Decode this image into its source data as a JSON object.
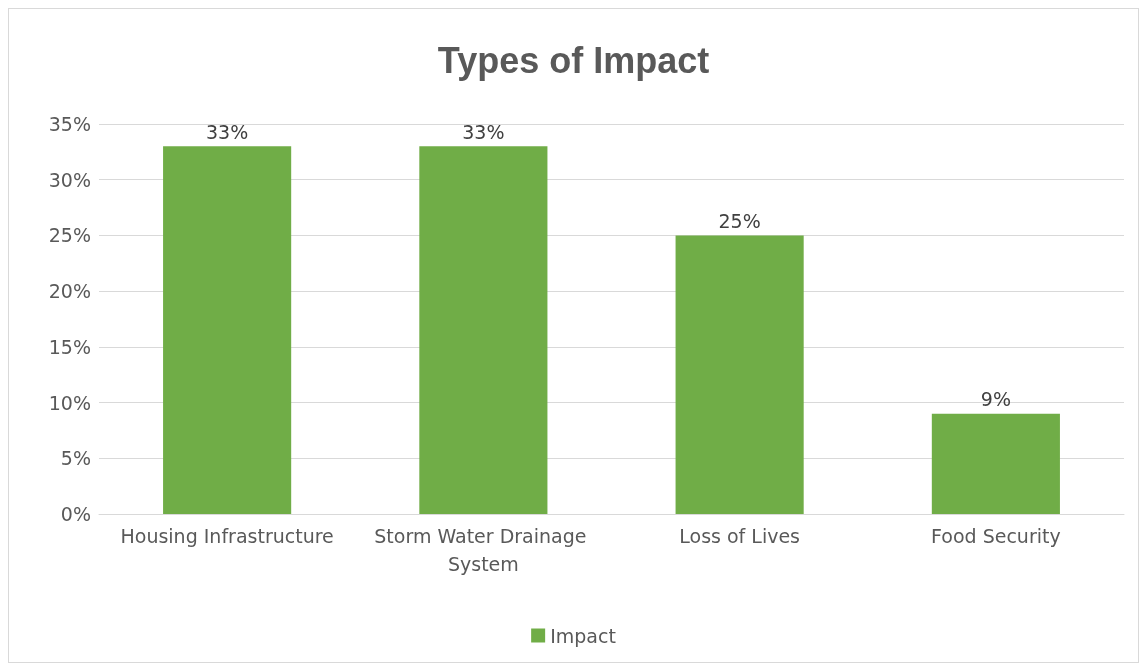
{
  "chart_data": {
    "type": "bar",
    "title": "Types of Impact",
    "categories": [
      "Housing Infrastructure",
      "Storm Water Drainage System",
      "Loss of Lives",
      "Food Security"
    ],
    "series": [
      {
        "name": "Impact",
        "color": "#70ad47",
        "values": [
          33,
          33,
          25,
          9
        ],
        "value_labels": [
          "33%",
          "33%",
          "25%",
          "9%"
        ]
      }
    ],
    "ylim": [
      0,
      35
    ],
    "yticks": [
      {
        "value": 0,
        "label": "0%"
      },
      {
        "value": 5,
        "label": "5%"
      },
      {
        "value": 10,
        "label": "10%"
      },
      {
        "value": 15,
        "label": "15%"
      },
      {
        "value": 20,
        "label": "20%"
      },
      {
        "value": 25,
        "label": "25%"
      },
      {
        "value": 30,
        "label": "30%"
      },
      {
        "value": 35,
        "label": "35%"
      }
    ],
    "grid": "y",
    "legend": "bottom"
  }
}
